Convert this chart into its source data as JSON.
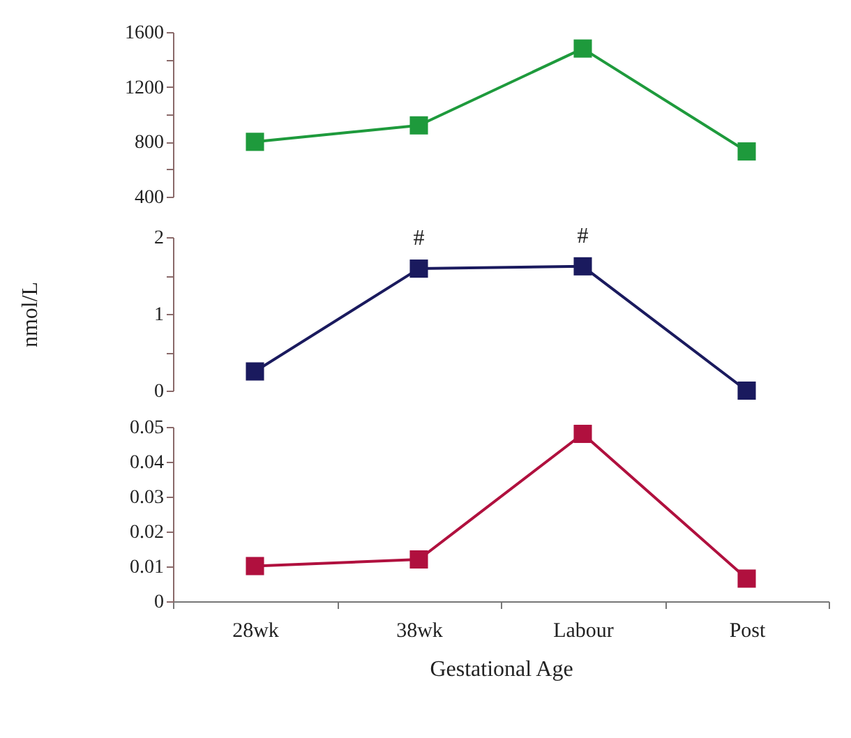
{
  "chart_data": [
    {
      "type": "line",
      "categories": [
        "28wk",
        "38wk",
        "Labour",
        "Post"
      ],
      "series": [
        {
          "color": "#1e9a3c",
          "values": [
            800,
            920,
            1480,
            730
          ]
        }
      ],
      "ylim": [
        400,
        1600
      ],
      "yticks": [
        400,
        {
          "value": 600,
          "label": null
        },
        800,
        {
          "value": 1000,
          "label": null
        },
        1200,
        {
          "value": 1400,
          "label": null
        },
        1600
      ],
      "marker": "square",
      "line_style": "solid",
      "tick_labels": "y"
    },
    {
      "type": "line",
      "ylabel": "nmol/L",
      "categories": [
        "28wk",
        "38wk",
        "Labour",
        "Post"
      ],
      "series": [
        {
          "color": "#1a1a5e",
          "values": [
            0.25,
            1.59,
            1.62,
            0
          ]
        }
      ],
      "ylim": [
        0,
        2
      ],
      "yticks": [
        0,
        {
          "value": 0.5,
          "label": null
        },
        1,
        {
          "value": 1.5,
          "label": null
        },
        2
      ],
      "marker": "square",
      "line_style": "solid",
      "tick_labels": "y",
      "annotations": [
        {
          "text": "#",
          "x": "38wk",
          "y": 1.59
        },
        {
          "text": "#",
          "x": "Labour",
          "y": 1.62
        }
      ]
    },
    {
      "type": "line",
      "xlabel": "Gestational Age",
      "categories": [
        "28wk",
        "38wk",
        "Labour",
        "Post"
      ],
      "series": [
        {
          "color": "#b0103e",
          "values": [
            0.0101,
            0.012,
            0.048,
            0.0065
          ]
        }
      ],
      "ylim": [
        0,
        0.05
      ],
      "yticks": [
        0,
        0.01,
        0.02,
        0.03,
        0.04,
        0.05
      ],
      "marker": "square",
      "line_style": "solid"
    }
  ]
}
